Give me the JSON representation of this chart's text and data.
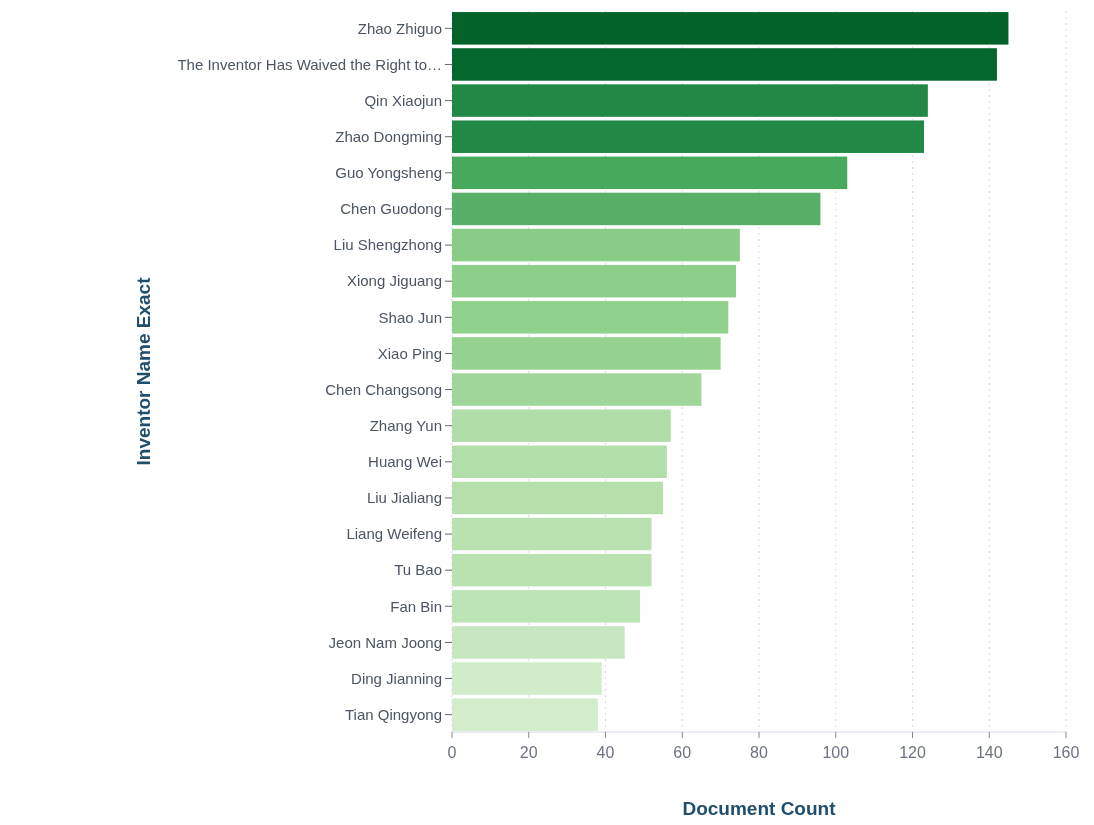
{
  "chart_data": {
    "type": "bar",
    "orientation": "horizontal",
    "xlabel": "Document Count",
    "ylabel": "Inventor Name Exact",
    "categories": [
      "Zhao Zhiguo",
      "The Inventor Has Waived the Right to…",
      "Qin Xiaojun",
      "Zhao Dongming",
      "Guo Yongsheng",
      "Chen Guodong",
      "Liu Shengzhong",
      "Xiong Jiguang",
      "Shao Jun",
      "Xiao Ping",
      "Chen Changsong",
      "Zhang Yun",
      "Huang Wei",
      "Liu Jialiang",
      "Liang Weifeng",
      "Tu Bao",
      "Fan Bin",
      "Jeon Nam Joong",
      "Ding Jianning",
      "Tian Qingyong"
    ],
    "values": [
      145,
      142,
      124,
      123,
      103,
      96,
      75,
      74,
      72,
      70,
      65,
      57,
      56,
      55,
      52,
      52,
      49,
      45,
      39,
      38
    ],
    "colors": [
      "#03632b",
      "#04672d",
      "#218845",
      "#218845",
      "#47a95c",
      "#58b068",
      "#88cc85",
      "#8ccf88",
      "#90d18b",
      "#95d28f",
      "#a0d699",
      "#b1dea8",
      "#b2dfa9",
      "#b5e0ab",
      "#b9e2b0",
      "#b9e2b0",
      "#bde4b4",
      "#c6e7bf",
      "#d0ecc9",
      "#d3edcc"
    ],
    "xlim": [
      0,
      160
    ],
    "xticks": [
      0,
      20,
      40,
      60,
      80,
      100,
      120,
      140,
      160
    ],
    "grid": "x"
  }
}
